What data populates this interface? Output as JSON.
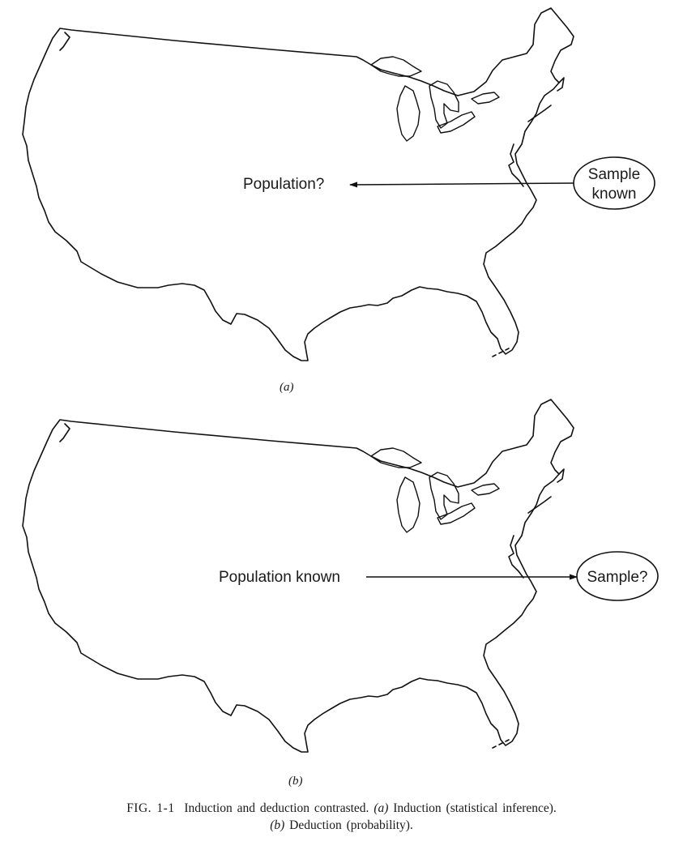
{
  "panel_a": {
    "population_label": "Population?",
    "sample_line1": "Sample",
    "sample_line2": "known",
    "sublabel": "(a)"
  },
  "panel_b": {
    "population_label": "Population known",
    "sample_label": "Sample?",
    "sublabel": "(b)"
  },
  "caption": {
    "number": "FIG. 1-1",
    "text1": "Induction and deduction contrasted.",
    "a_mark": "(a)",
    "text2": "Induction (statistical inference).",
    "b_mark": "(b)",
    "text3": "Deduction (probability)."
  }
}
